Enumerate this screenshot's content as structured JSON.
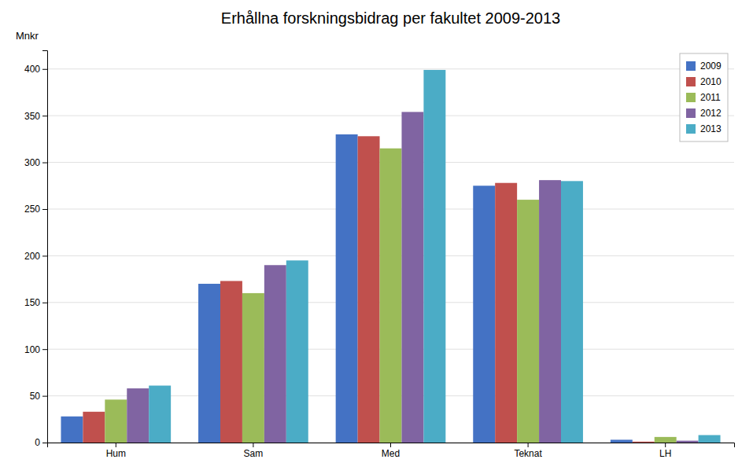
{
  "chart_data": {
    "type": "bar",
    "title": "Erhållna forskningsbidrag per fakultet 2009-2013",
    "ylabel": "Mnkr",
    "categories": [
      "Hum",
      "Sam",
      "Med",
      "Teknat",
      "LH"
    ],
    "series": [
      {
        "name": "2009",
        "color": "#4472C4",
        "values": [
          28,
          170,
          330,
          275,
          3
        ]
      },
      {
        "name": "2010",
        "color": "#C0504D",
        "values": [
          33,
          173,
          328,
          278,
          1
        ]
      },
      {
        "name": "2011",
        "color": "#9BBB59",
        "values": [
          46,
          160,
          315,
          260,
          6
        ]
      },
      {
        "name": "2012",
        "color": "#8064A2",
        "values": [
          58,
          190,
          354,
          281,
          2
        ]
      },
      {
        "name": "2013",
        "color": "#4BACC6",
        "values": [
          61,
          195,
          399,
          280,
          8
        ]
      }
    ],
    "ylim": [
      0,
      420
    ],
    "yticks": [
      0,
      50,
      100,
      150,
      200,
      250,
      300,
      350,
      400
    ],
    "grid": true,
    "legend": "upper right"
  }
}
